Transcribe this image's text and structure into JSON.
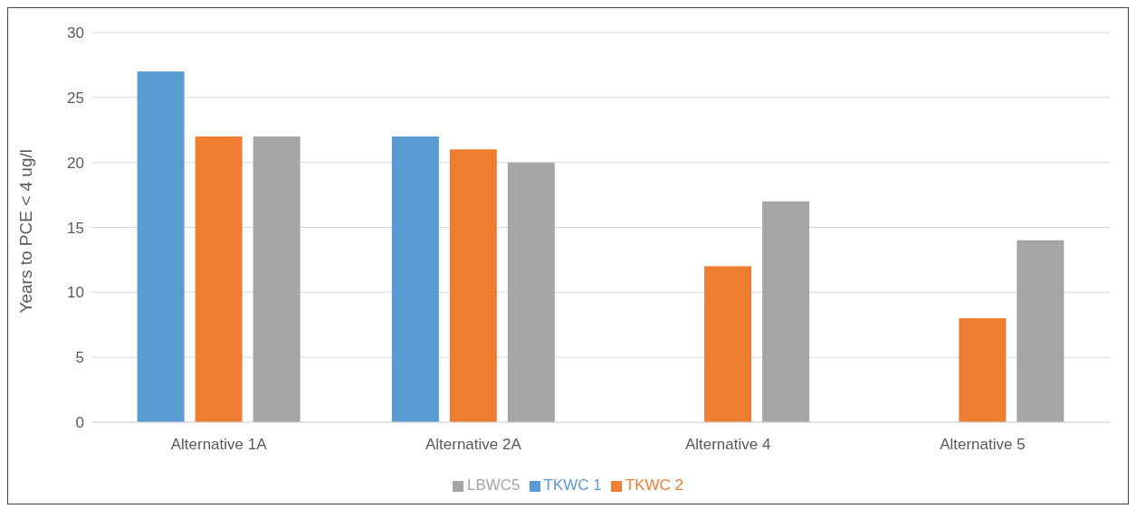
{
  "chart_data": {
    "type": "bar",
    "ylabel": "Years to PCE < 4 ug/l",
    "categories": [
      "Alternative 1A",
      "Alternative 2A",
      "Alternative 4",
      "Alternative 5"
    ],
    "series": [
      {
        "name": "TKWC 1",
        "color": "#5b9bd5",
        "values": [
          27,
          22,
          null,
          null
        ]
      },
      {
        "name": "TKWC 2",
        "color": "#ed7d31",
        "values": [
          22,
          21,
          12,
          8
        ]
      },
      {
        "name": "LBWC5",
        "color": "#a5a5a5",
        "values": [
          22,
          20,
          17,
          14
        ]
      }
    ],
    "ylim": [
      0,
      30
    ],
    "yticks": [
      0,
      5,
      10,
      15,
      20,
      25,
      30
    ],
    "grid": "y",
    "legend": "bottom"
  }
}
